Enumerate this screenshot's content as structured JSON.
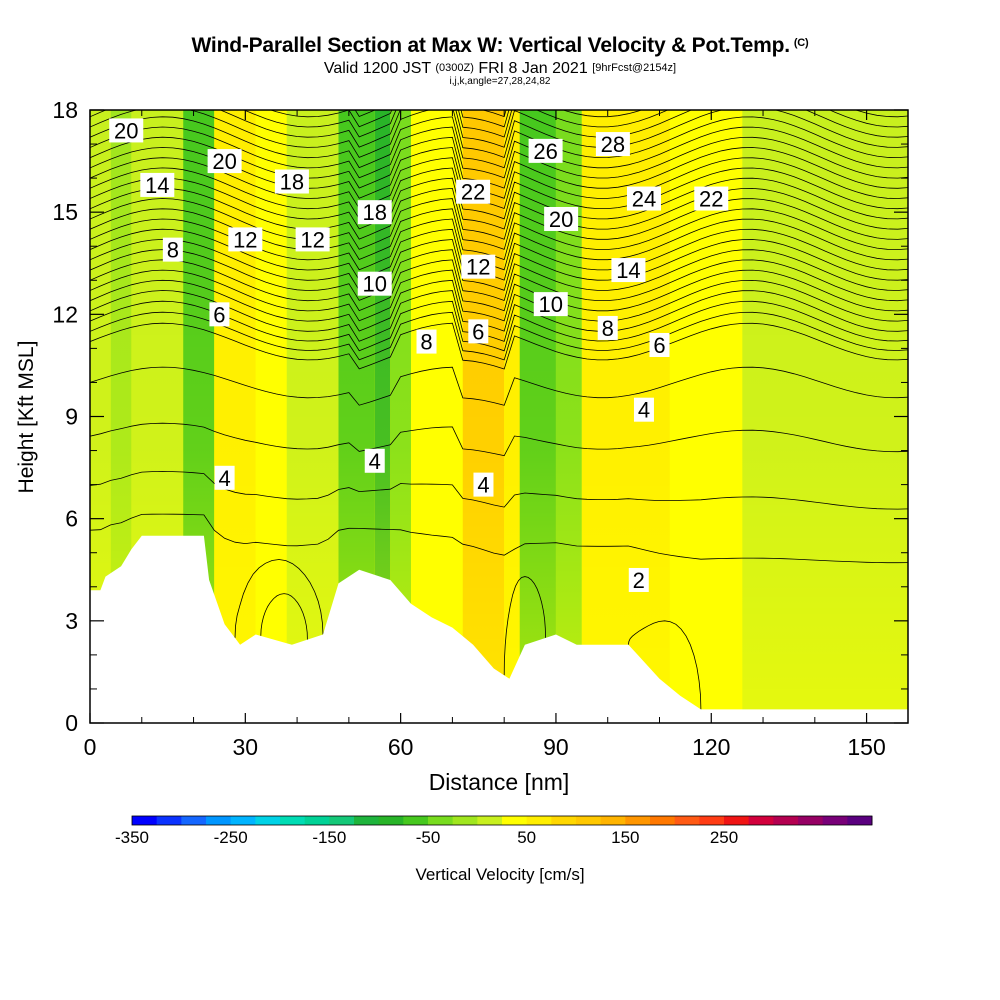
{
  "header": {
    "title": "Wind-Parallel Section at Max W: Vertical Velocity & Pot.Temp.",
    "title_tag": "(C)",
    "valid_prefix": "Valid 1200 JST",
    "valid_utc": "(0300Z)",
    "valid_date": "FRI 8 Jan 2021",
    "forecast": "[9hrFcst@2154z]",
    "params": "i,j,k,angle=27,28,24,82"
  },
  "colorbar": {
    "label": "Vertical Velocity [cm/s]",
    "tick_labels": [
      "-350",
      "-250",
      "-150",
      "-50",
      "50",
      "150",
      "250"
    ],
    "tick_values": [
      -350,
      -250,
      -150,
      -50,
      50,
      150,
      250
    ],
    "colors": [
      "#0000ff",
      "#0a32ff",
      "#1466ff",
      "#0096ff",
      "#00b4ff",
      "#00d2e6",
      "#00dcb4",
      "#00d296",
      "#14c878",
      "#1eb43c",
      "#28b428",
      "#46c81e",
      "#78dc1e",
      "#a0e61e",
      "#c8f01e",
      "#ffff00",
      "#ffee00",
      "#ffd700",
      "#ffc800",
      "#ffb400",
      "#ff9600",
      "#ff7800",
      "#ff5a14",
      "#ff3c14",
      "#f01414",
      "#d2003c",
      "#b40050",
      "#960064",
      "#780078",
      "#5a007f"
    ]
  },
  "chart_data": {
    "type": "heatmap",
    "title": "Wind-Parallel Section at Max W: Vertical Velocity & Pot.Temp.",
    "xlabel": "Distance [nm]",
    "ylabel": "Height [Kft MSL]",
    "xlim": [
      0,
      158
    ],
    "ylim": [
      0,
      18
    ],
    "x_ticks": [
      0,
      30,
      60,
      90,
      120,
      150
    ],
    "y_ticks": [
      0,
      3,
      6,
      9,
      12,
      15,
      18
    ],
    "x_tick_labels": [
      "0",
      "30",
      "60",
      "90",
      "120",
      "150"
    ],
    "y_tick_labels": [
      "0",
      "3",
      "6",
      "9",
      "12",
      "15",
      "18"
    ],
    "fill_variable": "Vertical Velocity [cm/s]",
    "contour_variable": "Pot.Temp.",
    "velocity_columns": [
      {
        "x": [
          0,
          4
        ],
        "value": 20
      },
      {
        "x": [
          4,
          8
        ],
        "value": -10
      },
      {
        "x": [
          8,
          18
        ],
        "value": 15
      },
      {
        "x": [
          18,
          24
        ],
        "value": -55
      },
      {
        "x": [
          24,
          32
        ],
        "value": 55
      },
      {
        "x": [
          32,
          38
        ],
        "value": 25
      },
      {
        "x": [
          38,
          48
        ],
        "value": 10
      },
      {
        "x": [
          48,
          55
        ],
        "value": -60
      },
      {
        "x": [
          55,
          58
        ],
        "value": -100
      },
      {
        "x": [
          58,
          62
        ],
        "value": -30
      },
      {
        "x": [
          62,
          72
        ],
        "value": 30
      },
      {
        "x": [
          72,
          80
        ],
        "value": 120
      },
      {
        "x": [
          80,
          83
        ],
        "value": 55
      },
      {
        "x": [
          83,
          90
        ],
        "value": -75
      },
      {
        "x": [
          90,
          95
        ],
        "value": -30
      },
      {
        "x": [
          95,
          112
        ],
        "value": 55
      },
      {
        "x": [
          112,
          126
        ],
        "value": 30
      },
      {
        "x": [
          126,
          158
        ],
        "value": 15
      }
    ],
    "terrain_kft": [
      {
        "x": 0,
        "z": 3.9
      },
      {
        "x": 2,
        "z": 3.9
      },
      {
        "x": 3,
        "z": 4.3
      },
      {
        "x": 6,
        "z": 4.6
      },
      {
        "x": 8,
        "z": 5.1
      },
      {
        "x": 10,
        "z": 5.5
      },
      {
        "x": 22,
        "z": 5.5
      },
      {
        "x": 23,
        "z": 4.2
      },
      {
        "x": 26,
        "z": 2.9
      },
      {
        "x": 29,
        "z": 2.3
      },
      {
        "x": 32,
        "z": 2.6
      },
      {
        "x": 39,
        "z": 2.3
      },
      {
        "x": 45,
        "z": 2.6
      },
      {
        "x": 48,
        "z": 4.1
      },
      {
        "x": 52,
        "z": 4.5
      },
      {
        "x": 58,
        "z": 4.2
      },
      {
        "x": 62,
        "z": 3.5
      },
      {
        "x": 66,
        "z": 3.1
      },
      {
        "x": 70,
        "z": 2.8
      },
      {
        "x": 74,
        "z": 2.3
      },
      {
        "x": 78,
        "z": 1.6
      },
      {
        "x": 81,
        "z": 1.3
      },
      {
        "x": 84,
        "z": 2.3
      },
      {
        "x": 90,
        "z": 2.6
      },
      {
        "x": 94,
        "z": 2.3
      },
      {
        "x": 104,
        "z": 2.3
      },
      {
        "x": 107,
        "z": 1.8
      },
      {
        "x": 110,
        "z": 1.3
      },
      {
        "x": 114,
        "z": 0.8
      },
      {
        "x": 118,
        "z": 0.4
      },
      {
        "x": 158,
        "z": 0.4
      }
    ],
    "contour_labels": [
      {
        "text": "20",
        "x": 7,
        "y": 17.4
      },
      {
        "text": "20",
        "x": 26,
        "y": 16.5
      },
      {
        "text": "18",
        "x": 39,
        "y": 15.9
      },
      {
        "text": "14",
        "x": 13,
        "y": 15.8
      },
      {
        "text": "18",
        "x": 55,
        "y": 15.0
      },
      {
        "text": "22",
        "x": 74,
        "y": 15.6
      },
      {
        "text": "26",
        "x": 88,
        "y": 16.8
      },
      {
        "text": "28",
        "x": 101,
        "y": 17.0
      },
      {
        "text": "20",
        "x": 91,
        "y": 14.8
      },
      {
        "text": "24",
        "x": 107,
        "y": 15.4
      },
      {
        "text": "22",
        "x": 120,
        "y": 15.4
      },
      {
        "text": "8",
        "x": 16,
        "y": 13.9
      },
      {
        "text": "12",
        "x": 30,
        "y": 14.2
      },
      {
        "text": "12",
        "x": 43,
        "y": 14.2
      },
      {
        "text": "12",
        "x": 75,
        "y": 13.4
      },
      {
        "text": "14",
        "x": 104,
        "y": 13.3
      },
      {
        "text": "10",
        "x": 55,
        "y": 12.9
      },
      {
        "text": "10",
        "x": 89,
        "y": 12.3
      },
      {
        "text": "6",
        "x": 25,
        "y": 12.0
      },
      {
        "text": "8",
        "x": 65,
        "y": 11.2
      },
      {
        "text": "6",
        "x": 75,
        "y": 11.5
      },
      {
        "text": "8",
        "x": 100,
        "y": 11.6
      },
      {
        "text": "6",
        "x": 110,
        "y": 11.1
      },
      {
        "text": "4",
        "x": 107,
        "y": 9.2
      },
      {
        "text": "4",
        "x": 55,
        "y": 7.7
      },
      {
        "text": "4",
        "x": 26,
        "y": 7.2
      },
      {
        "text": "4",
        "x": 76,
        "y": 7.0
      },
      {
        "text": "2",
        "x": 106,
        "y": 4.2
      }
    ]
  }
}
